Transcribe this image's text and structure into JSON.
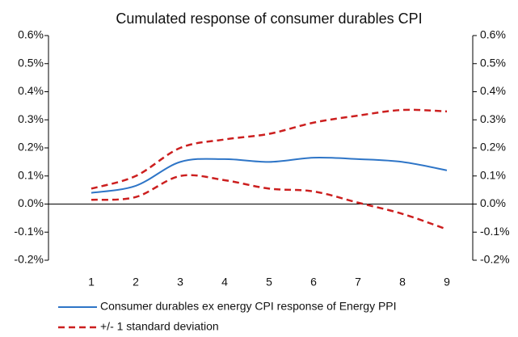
{
  "chart_data": {
    "type": "line",
    "title": "Cumulated response of consumer durables CPI",
    "categories": [
      "1",
      "2",
      "3",
      "4",
      "5",
      "6",
      "7",
      "8",
      "9"
    ],
    "series": [
      {
        "name": "Consumer durables ex energy CPI response of Energy PPI",
        "color": "#2e75c7",
        "values": [
          0.04,
          0.065,
          0.15,
          0.16,
          0.15,
          0.165,
          0.16,
          0.15,
          0.12
        ]
      },
      {
        "name": "+/- 1 standard deviation",
        "color": "#cc1f1f",
        "dashed": true,
        "upper": [
          0.055,
          0.1,
          0.2,
          0.23,
          0.25,
          0.29,
          0.315,
          0.335,
          0.33
        ],
        "lower": [
          0.015,
          0.025,
          0.1,
          0.085,
          0.055,
          0.045,
          0.005,
          -0.035,
          -0.09
        ]
      }
    ],
    "ylim": [
      -0.2,
      0.6
    ],
    "yticks": [
      {
        "value": -0.2,
        "label": "-0.2%"
      },
      {
        "value": -0.1,
        "label": "-0.1%"
      },
      {
        "value": 0,
        "label": "0.0%"
      },
      {
        "value": 0.1,
        "label": "0.1%"
      },
      {
        "value": 0.2,
        "label": "0.2%"
      },
      {
        "value": 0.3,
        "label": "0.3%"
      },
      {
        "value": 0.4,
        "label": "0.4%"
      },
      {
        "value": 0.5,
        "label": "0.5%"
      },
      {
        "value": 0.6,
        "label": "0.6%"
      }
    ],
    "y2lim": [
      -0.2,
      0.6
    ],
    "y2ticks": [
      {
        "value": -0.2,
        "label": "-0.2%"
      },
      {
        "value": -0.1,
        "label": "-0.1%"
      },
      {
        "value": 0,
        "label": "0.0%"
      },
      {
        "value": 0.1,
        "label": "0.1%"
      },
      {
        "value": 0.2,
        "label": "0.2%"
      },
      {
        "value": 0.3,
        "label": "0.3%"
      },
      {
        "value": 0.4,
        "label": "0.4%"
      },
      {
        "value": 0.5,
        "label": "0.5%"
      },
      {
        "value": 0.6,
        "label": "0.6%"
      }
    ]
  }
}
